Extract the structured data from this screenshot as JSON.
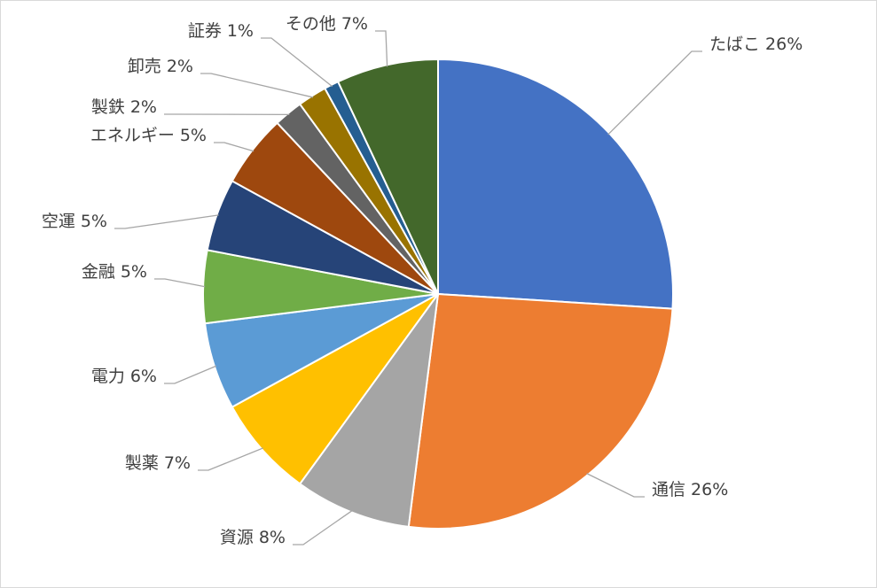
{
  "chart_data": {
    "type": "pie",
    "categories": [
      "たばこ",
      "通信",
      "資源",
      "製薬",
      "電力",
      "金融",
      "空運",
      "エネルギー",
      "製鉄",
      "卸売",
      "証券",
      "その他"
    ],
    "values": [
      26,
      26,
      8,
      7,
      6,
      5,
      5,
      5,
      2,
      2,
      1,
      7
    ],
    "value_labels": [
      "26%",
      "26%",
      "8%",
      "7%",
      "6%",
      "5%",
      "5%",
      "5%",
      "2%",
      "2%",
      "1%",
      "7%"
    ],
    "colors": [
      "#4472c4",
      "#ed7d31",
      "#a5a5a5",
      "#ffc000",
      "#5b9bd5",
      "#70ad47",
      "#264478",
      "#9e480e",
      "#636363",
      "#997300",
      "#255e91",
      "#43682b"
    ]
  }
}
